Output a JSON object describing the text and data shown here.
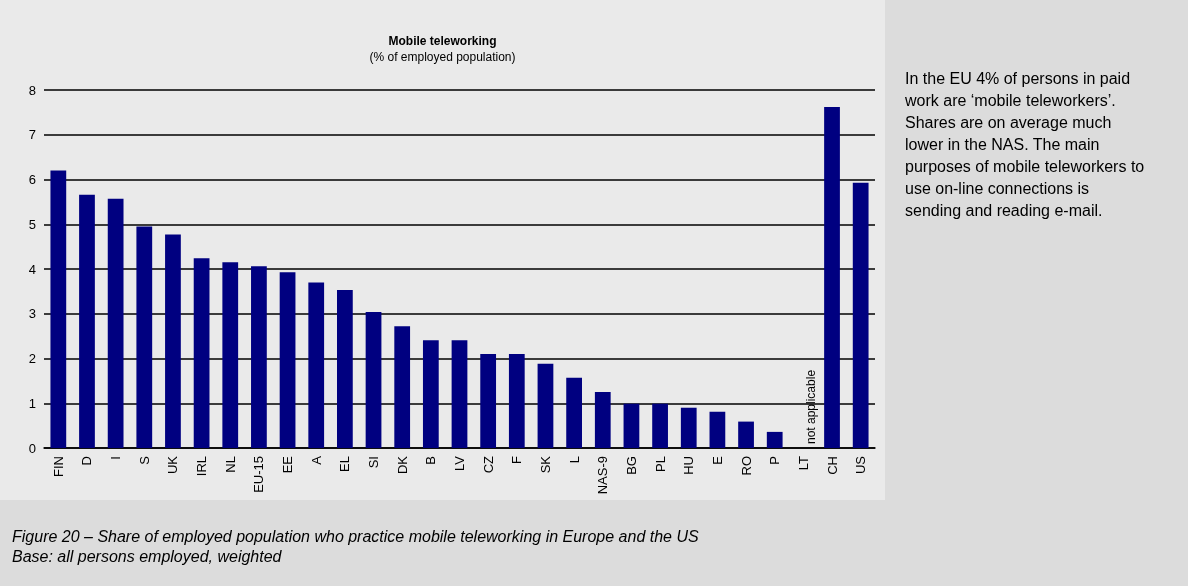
{
  "chart_data": {
    "type": "bar",
    "title": "Mobile teleworking",
    "subtitle": "(% of employed population)",
    "categories": [
      "FIN",
      "D",
      "I",
      "S",
      "UK",
      "IRL",
      "NL",
      "EU-15",
      "EE",
      "A",
      "EL",
      "SI",
      "DK",
      "B",
      "LV",
      "CZ",
      "F",
      "SK",
      "L",
      "NAS-9",
      "BG",
      "PL",
      "HU",
      "E",
      "RO",
      "P",
      "LT",
      "CH",
      "US"
    ],
    "values": [
      6.2,
      5.66,
      5.57,
      4.95,
      4.77,
      4.24,
      4.15,
      4.06,
      3.93,
      3.7,
      3.53,
      3.04,
      2.72,
      2.41,
      2.41,
      2.1,
      2.1,
      1.88,
      1.57,
      1.25,
      0.99,
      0.99,
      0.9,
      0.81,
      0.59,
      0.36,
      null,
      7.62,
      5.93
    ],
    "color": "#000080",
    "ylim": [
      0,
      8
    ],
    "yticks": [
      0,
      1,
      2,
      3,
      4,
      5,
      6,
      7,
      8
    ],
    "grid": "y",
    "annotations": [
      "In the EU 4% of persons in paid work are ‘mobile teleworkers’. Shares are on average much lower in the NAS. The main purposes of mobile teleworkers to use on-line connections is sending and reading e-mail.",
      "not applicable",
      "Figure 20 – Share of employed population who practice mobile teleworking in Europe and the US",
      "Base: all persons employed, weighted"
    ]
  }
}
